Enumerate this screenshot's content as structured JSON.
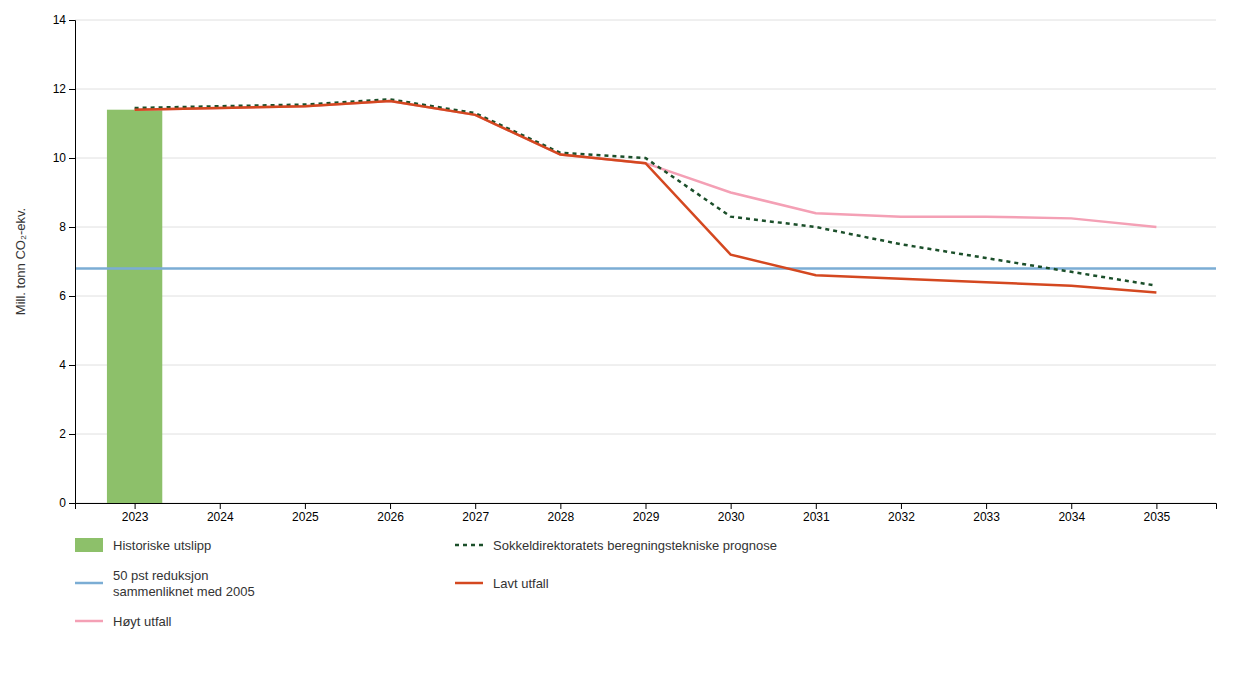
{
  "chart_data": {
    "type": "line",
    "ylabel": "Mill. tonn CO₂-ekv.",
    "x": [
      2023,
      2024,
      2025,
      2026,
      2027,
      2028,
      2029,
      2030,
      2031,
      2032,
      2033,
      2034,
      2035
    ],
    "xlim": [
      2022.3,
      2035.7
    ],
    "xticks": [
      2023,
      2024,
      2025,
      2026,
      2027,
      2028,
      2029,
      2030,
      2031,
      2032,
      2033,
      2034,
      2035
    ],
    "ylim": [
      0,
      14
    ],
    "yticks": [
      0,
      2,
      4,
      6,
      8,
      10,
      12,
      14
    ],
    "grid": "y",
    "legend": "bottom",
    "series": [
      {
        "name": "Historiske utslipp",
        "type": "bar",
        "color": "#8DC06A",
        "values": [
          11.4,
          null,
          null,
          null,
          null,
          null,
          null,
          null,
          null,
          null,
          null,
          null,
          null
        ]
      },
      {
        "name": "50 pst reduksjon\nsammenliknet med 2005",
        "type": "line",
        "color": "#7BADD4",
        "line_style": "solid",
        "x": [
          2022.3,
          2035.7
        ],
        "values": [
          6.8,
          6.8
        ]
      },
      {
        "name": "Høyt utfall",
        "type": "line",
        "color": "#F4A0B5",
        "line_style": "solid",
        "values": [
          11.4,
          11.45,
          11.5,
          11.65,
          11.25,
          10.1,
          9.85,
          9.0,
          8.4,
          8.3,
          8.3,
          8.25,
          8.0
        ]
      },
      {
        "name": "Sokkeldirektoratets beregningstekniske prognose",
        "type": "line",
        "color": "#1B4F2A",
        "line_style": "dotted",
        "values": [
          11.45,
          11.5,
          11.55,
          11.7,
          11.3,
          10.15,
          10.0,
          8.3,
          8.0,
          7.5,
          7.1,
          6.7,
          6.3
        ]
      },
      {
        "name": "Lavt utfall",
        "type": "line",
        "color": "#D44820",
        "line_style": "solid",
        "values": [
          11.4,
          11.45,
          11.5,
          11.65,
          11.25,
          10.1,
          9.85,
          7.2,
          6.6,
          6.5,
          6.4,
          6.3,
          6.1
        ]
      }
    ]
  }
}
